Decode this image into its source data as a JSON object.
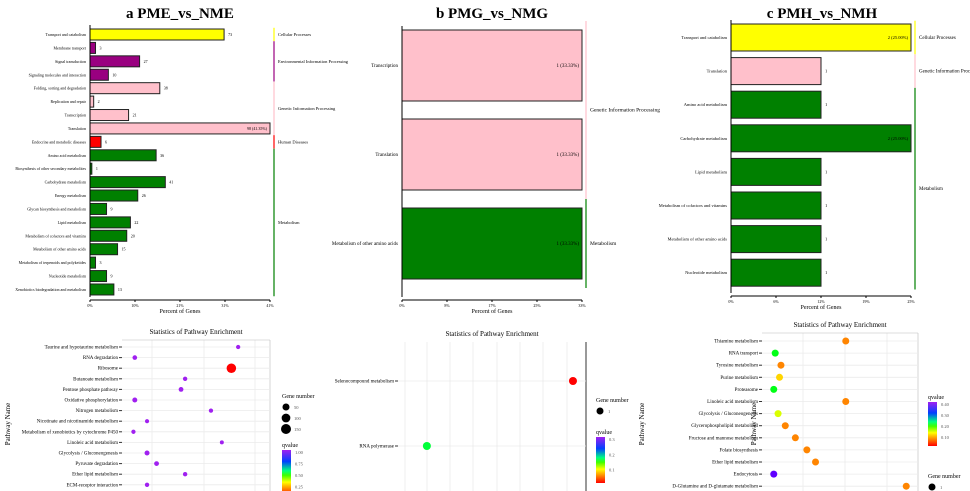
{
  "colors": {
    "Cellular Processes": "#ffff00",
    "Environmental Information Processing": "#990080",
    "Genetic Information Processing": "#ffc0cb",
    "Human Diseases": "#ff0000",
    "Metabolism": "#008000"
  },
  "chart_data": [
    {
      "type": "bar",
      "orientation": "horizontal",
      "title": "a PME_vs_NME",
      "xlabel": "Percent of Genes",
      "xticks": [
        "0%",
        "10%",
        "21%",
        "31%",
        "41%"
      ],
      "max_value": 98,
      "bars": [
        {
          "label": "Transport and catabolism",
          "value": 73,
          "text": "73",
          "category": "Cellular Processes"
        },
        {
          "label": "Membrane transport",
          "value": 3,
          "text": "3",
          "category": "Environmental Information Processing"
        },
        {
          "label": "Signal transduction",
          "value": 27,
          "text": "27",
          "category": "Environmental Information Processing"
        },
        {
          "label": "Signaling molecules and interaction",
          "value": 10,
          "text": "10",
          "category": "Environmental Information Processing"
        },
        {
          "label": "Folding, sorting and degradation",
          "value": 38,
          "text": "38",
          "category": "Genetic Information Processing"
        },
        {
          "label": "Replication and repair",
          "value": 2,
          "text": "2",
          "category": "Genetic Information Processing"
        },
        {
          "label": "Transcription",
          "value": 21,
          "text": "21",
          "category": "Genetic Information Processing"
        },
        {
          "label": "Translation",
          "value": 98,
          "text": "98 (41.35%)",
          "category": "Genetic Information Processing"
        },
        {
          "label": "Endocrine and metabolic diseases",
          "value": 6,
          "text": "6",
          "category": "Human Diseases"
        },
        {
          "label": "Amino acid metabolism",
          "value": 36,
          "text": "36",
          "category": "Metabolism"
        },
        {
          "label": "Biosynthesis of other secondary metabolites",
          "value": 1,
          "text": "1",
          "category": "Metabolism"
        },
        {
          "label": "Carbohydrate metabolism",
          "value": 41,
          "text": "41",
          "category": "Metabolism"
        },
        {
          "label": "Energy metabolism",
          "value": 26,
          "text": "26",
          "category": "Metabolism"
        },
        {
          "label": "Glycan biosynthesis and metabolism",
          "value": 9,
          "text": "9",
          "category": "Metabolism"
        },
        {
          "label": "Lipid metabolism",
          "value": 22,
          "text": "22",
          "category": "Metabolism"
        },
        {
          "label": "Metabolism of cofactors and vitamins",
          "value": 20,
          "text": "20",
          "category": "Metabolism"
        },
        {
          "label": "Metabolism of other amino acids",
          "value": 15,
          "text": "15",
          "category": "Metabolism"
        },
        {
          "label": "Metabolism of terpenoids and polyketides",
          "value": 3,
          "text": "3",
          "category": "Metabolism"
        },
        {
          "label": "Nucleotide metabolism",
          "value": 9,
          "text": "9",
          "category": "Metabolism"
        },
        {
          "label": "Xenobiotics biodegradation and metabolism",
          "value": 13,
          "text": "13",
          "category": "Metabolism"
        }
      ],
      "categories": [
        "Cellular Processes",
        "Environmental Information Processing",
        "Genetic Information Processing",
        "Human Diseases",
        "Metabolism"
      ]
    },
    {
      "type": "bar",
      "orientation": "horizontal",
      "title": "b PMG_vs_NMG",
      "xlabel": "Percent of Genes",
      "xticks": [
        "0%",
        "8%",
        "17%",
        "25%",
        "33%"
      ],
      "max_value": 1,
      "bars": [
        {
          "label": "Transcription",
          "value": 1,
          "text": "1 (33.33%)",
          "category": "Genetic Information Processing"
        },
        {
          "label": "Translation",
          "value": 1,
          "text": "1 (33.33%)",
          "category": "Genetic Information Processing"
        },
        {
          "label": "Metabolism of other amino acids",
          "value": 1,
          "text": "1 (33.33%)",
          "category": "Metabolism"
        }
      ],
      "categories": [
        "Genetic Information Processing",
        "Metabolism"
      ]
    },
    {
      "type": "bar",
      "orientation": "horizontal",
      "title": "c PMH_vs_NMH",
      "xlabel": "Percent of Genes",
      "xticks": [
        "0%",
        "6%",
        "12%",
        "19%",
        "25%"
      ],
      "max_value": 2,
      "bars": [
        {
          "label": "Transport and catabolism",
          "value": 2,
          "text": "2 (25.00%)",
          "category": "Cellular Processes"
        },
        {
          "label": "Translation",
          "value": 1,
          "text": "1",
          "category": "Genetic Information Processing"
        },
        {
          "label": "Amino acid metabolism",
          "value": 1,
          "text": "1",
          "category": "Metabolism"
        },
        {
          "label": "Carbohydrate metabolism",
          "value": 2,
          "text": "2 (25.00%)",
          "category": "Metabolism"
        },
        {
          "label": "Lipid metabolism",
          "value": 1,
          "text": "1",
          "category": "Metabolism"
        },
        {
          "label": "Metabolism of cofactors and vitamins",
          "value": 1,
          "text": "1",
          "category": "Metabolism"
        },
        {
          "label": "Metabolism of other amino acids",
          "value": 1,
          "text": "1",
          "category": "Metabolism"
        },
        {
          "label": "Nucleotide metabolism",
          "value": 1,
          "text": "1",
          "category": "Metabolism"
        }
      ],
      "categories": [
        "Cellular Processes",
        "Genetic Information Processing",
        "Metabolism"
      ]
    },
    {
      "type": "scatter",
      "title": "Statistics of Pathway Enrichment",
      "ylabel": "Pathway Name",
      "size_legend_title": "Gene number",
      "size_legend": [
        50,
        100,
        150
      ],
      "color_legend_title": "qvalue",
      "color_legend": [
        "1.00",
        "0.75",
        "0.50",
        "0.25"
      ],
      "points": [
        {
          "pathway": "Taurine and hypotaurine metabolism",
          "rich_factor": 0.81,
          "genes": 5,
          "qvalue": 1.0
        },
        {
          "pathway": "RNA degradation",
          "rich_factor": 0.05,
          "genes": 8,
          "qvalue": 1.0
        },
        {
          "pathway": "Ribosome",
          "rich_factor": 0.76,
          "genes": 130,
          "qvalue": 0.0
        },
        {
          "pathway": "Butanoate metabolism",
          "rich_factor": 0.42,
          "genes": 6,
          "qvalue": 1.0
        },
        {
          "pathway": "Pentose phosphate pathway",
          "rich_factor": 0.39,
          "genes": 10,
          "qvalue": 1.0
        },
        {
          "pathway": "Oxidative phosphorylation",
          "rich_factor": 0.05,
          "genes": 12,
          "qvalue": 1.0
        },
        {
          "pathway": "Nitrogen metabolism",
          "rich_factor": 0.61,
          "genes": 5,
          "qvalue": 1.0
        },
        {
          "pathway": "Nicotinate and nicotinamide metabolism",
          "rich_factor": 0.14,
          "genes": 4,
          "qvalue": 1.0
        },
        {
          "pathway": "Metabolism of xenobiotics by cytochrome P450",
          "rich_factor": 0.04,
          "genes": 5,
          "qvalue": 1.0
        },
        {
          "pathway": "Linoleic acid metabolism",
          "rich_factor": 0.69,
          "genes": 3,
          "qvalue": 1.0
        },
        {
          "pathway": "Glycolysis / Gluconeogenesis",
          "rich_factor": 0.14,
          "genes": 12,
          "qvalue": 1.0
        },
        {
          "pathway": "Pyruvate degradation",
          "rich_factor": 0.21,
          "genes": 10,
          "qvalue": 1.0
        },
        {
          "pathway": "Ether lipid metabolism",
          "rich_factor": 0.42,
          "genes": 6,
          "qvalue": 1.0
        },
        {
          "pathway": "ECM-receptor interaction",
          "rich_factor": 0.14,
          "genes": 6,
          "qvalue": 1.0
        }
      ]
    },
    {
      "type": "scatter",
      "title": "Statistics of Pathway Enrichment",
      "ylabel": "Pathway Name",
      "size_legend_title": "Gene number",
      "size_legend": [
        1
      ],
      "color_legend_title": "qvalue",
      "color_legend": [
        "0.3",
        "0.2",
        "0.1"
      ],
      "points": [
        {
          "pathway": "Selenocompound metabolism",
          "rich_factor": 0.96,
          "genes": 1,
          "qvalue": 0.0
        },
        {
          "pathway": "RNA polymerase",
          "rich_factor": 0.13,
          "genes": 1,
          "qvalue": 0.16
        }
      ]
    },
    {
      "type": "scatter",
      "title": "Statistics of Pathway Enrichment",
      "ylabel": "Pathway Name",
      "size_legend_title": "Gene number",
      "size_legend": [
        1
      ],
      "color_legend_title": "qvalue",
      "color_legend": [
        "0.40",
        "0.30",
        "0.20",
        "0.10"
      ],
      "points": [
        {
          "pathway": "Thiamine metabolism",
          "rich_factor": 0.54,
          "genes": 1,
          "qvalue": 0.05
        },
        {
          "pathway": "RNA transport",
          "rich_factor": 0.05,
          "genes": 1,
          "qvalue": 0.2
        },
        {
          "pathway": "Tyrosine metabolism",
          "rich_factor": 0.09,
          "genes": 1,
          "qvalue": 0.05
        },
        {
          "pathway": "Purine metabolism",
          "rich_factor": 0.08,
          "genes": 1,
          "qvalue": 0.08
        },
        {
          "pathway": "Proteasome",
          "rich_factor": 0.04,
          "genes": 1,
          "qvalue": 0.2
        },
        {
          "pathway": "Linoleic acid metabolism",
          "rich_factor": 0.54,
          "genes": 1,
          "qvalue": 0.05
        },
        {
          "pathway": "Glycolysis / Gluconeogenesis",
          "rich_factor": 0.07,
          "genes": 1,
          "qvalue": 0.11
        },
        {
          "pathway": "Glycerophospholipid metabolism",
          "rich_factor": 0.12,
          "genes": 1,
          "qvalue": 0.05
        },
        {
          "pathway": "Fructose and mannose metabolism",
          "rich_factor": 0.19,
          "genes": 1,
          "qvalue": 0.05
        },
        {
          "pathway": "Folate biosynthesis",
          "rich_factor": 0.27,
          "genes": 1,
          "qvalue": 0.05
        },
        {
          "pathway": "Ether lipid metabolism",
          "rich_factor": 0.33,
          "genes": 1,
          "qvalue": 0.05
        },
        {
          "pathway": "Endocytosis",
          "rich_factor": 0.04,
          "genes": 1,
          "qvalue": 0.42
        },
        {
          "pathway": "D-Glutamine and D-glutamate metabolism",
          "rich_factor": 0.96,
          "genes": 1,
          "qvalue": 0.05
        }
      ]
    }
  ]
}
